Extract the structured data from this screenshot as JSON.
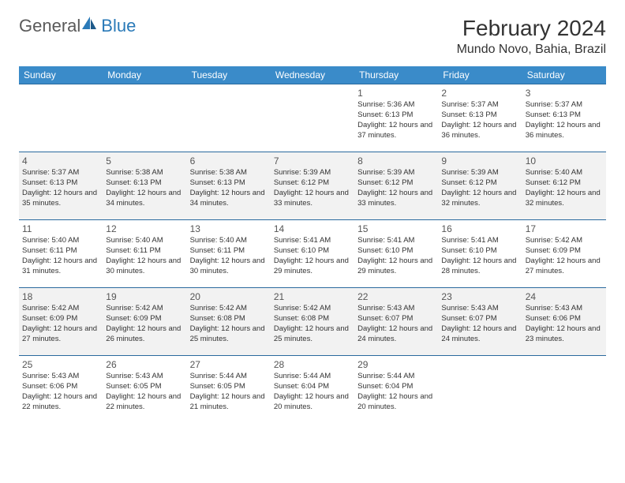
{
  "logo": {
    "general": "General",
    "blue": "Blue"
  },
  "title": "February 2024",
  "location": "Mundo Novo, Bahia, Brazil",
  "colors": {
    "header_bg": "#3a8bc9",
    "header_text": "#ffffff",
    "row_border": "#2a6a9e",
    "shade_row": "#f2f2f2",
    "logo_gray": "#5a5a5a",
    "logo_blue": "#2a7ab8"
  },
  "weekdays": [
    "Sunday",
    "Monday",
    "Tuesday",
    "Wednesday",
    "Thursday",
    "Friday",
    "Saturday"
  ],
  "layout": {
    "columns": 7,
    "rows": 5,
    "first_weekday_index": 4,
    "days_in_month": 29
  },
  "fonts": {
    "title_pt": 28,
    "location_pt": 16,
    "weekday_pt": 12,
    "daynum_pt": 12,
    "cell_pt": 9.5
  },
  "weeks": [
    [
      null,
      null,
      null,
      null,
      {
        "n": "1",
        "sunrise": "Sunrise: 5:36 AM",
        "sunset": "Sunset: 6:13 PM",
        "daylight": "Daylight: 12 hours and 37 minutes."
      },
      {
        "n": "2",
        "sunrise": "Sunrise: 5:37 AM",
        "sunset": "Sunset: 6:13 PM",
        "daylight": "Daylight: 12 hours and 36 minutes."
      },
      {
        "n": "3",
        "sunrise": "Sunrise: 5:37 AM",
        "sunset": "Sunset: 6:13 PM",
        "daylight": "Daylight: 12 hours and 36 minutes."
      }
    ],
    [
      {
        "n": "4",
        "sunrise": "Sunrise: 5:37 AM",
        "sunset": "Sunset: 6:13 PM",
        "daylight": "Daylight: 12 hours and 35 minutes."
      },
      {
        "n": "5",
        "sunrise": "Sunrise: 5:38 AM",
        "sunset": "Sunset: 6:13 PM",
        "daylight": "Daylight: 12 hours and 34 minutes."
      },
      {
        "n": "6",
        "sunrise": "Sunrise: 5:38 AM",
        "sunset": "Sunset: 6:13 PM",
        "daylight": "Daylight: 12 hours and 34 minutes."
      },
      {
        "n": "7",
        "sunrise": "Sunrise: 5:39 AM",
        "sunset": "Sunset: 6:12 PM",
        "daylight": "Daylight: 12 hours and 33 minutes."
      },
      {
        "n": "8",
        "sunrise": "Sunrise: 5:39 AM",
        "sunset": "Sunset: 6:12 PM",
        "daylight": "Daylight: 12 hours and 33 minutes."
      },
      {
        "n": "9",
        "sunrise": "Sunrise: 5:39 AM",
        "sunset": "Sunset: 6:12 PM",
        "daylight": "Daylight: 12 hours and 32 minutes."
      },
      {
        "n": "10",
        "sunrise": "Sunrise: 5:40 AM",
        "sunset": "Sunset: 6:12 PM",
        "daylight": "Daylight: 12 hours and 32 minutes."
      }
    ],
    [
      {
        "n": "11",
        "sunrise": "Sunrise: 5:40 AM",
        "sunset": "Sunset: 6:11 PM",
        "daylight": "Daylight: 12 hours and 31 minutes."
      },
      {
        "n": "12",
        "sunrise": "Sunrise: 5:40 AM",
        "sunset": "Sunset: 6:11 PM",
        "daylight": "Daylight: 12 hours and 30 minutes."
      },
      {
        "n": "13",
        "sunrise": "Sunrise: 5:40 AM",
        "sunset": "Sunset: 6:11 PM",
        "daylight": "Daylight: 12 hours and 30 minutes."
      },
      {
        "n": "14",
        "sunrise": "Sunrise: 5:41 AM",
        "sunset": "Sunset: 6:10 PM",
        "daylight": "Daylight: 12 hours and 29 minutes."
      },
      {
        "n": "15",
        "sunrise": "Sunrise: 5:41 AM",
        "sunset": "Sunset: 6:10 PM",
        "daylight": "Daylight: 12 hours and 29 minutes."
      },
      {
        "n": "16",
        "sunrise": "Sunrise: 5:41 AM",
        "sunset": "Sunset: 6:10 PM",
        "daylight": "Daylight: 12 hours and 28 minutes."
      },
      {
        "n": "17",
        "sunrise": "Sunrise: 5:42 AM",
        "sunset": "Sunset: 6:09 PM",
        "daylight": "Daylight: 12 hours and 27 minutes."
      }
    ],
    [
      {
        "n": "18",
        "sunrise": "Sunrise: 5:42 AM",
        "sunset": "Sunset: 6:09 PM",
        "daylight": "Daylight: 12 hours and 27 minutes."
      },
      {
        "n": "19",
        "sunrise": "Sunrise: 5:42 AM",
        "sunset": "Sunset: 6:09 PM",
        "daylight": "Daylight: 12 hours and 26 minutes."
      },
      {
        "n": "20",
        "sunrise": "Sunrise: 5:42 AM",
        "sunset": "Sunset: 6:08 PM",
        "daylight": "Daylight: 12 hours and 25 minutes."
      },
      {
        "n": "21",
        "sunrise": "Sunrise: 5:42 AM",
        "sunset": "Sunset: 6:08 PM",
        "daylight": "Daylight: 12 hours and 25 minutes."
      },
      {
        "n": "22",
        "sunrise": "Sunrise: 5:43 AM",
        "sunset": "Sunset: 6:07 PM",
        "daylight": "Daylight: 12 hours and 24 minutes."
      },
      {
        "n": "23",
        "sunrise": "Sunrise: 5:43 AM",
        "sunset": "Sunset: 6:07 PM",
        "daylight": "Daylight: 12 hours and 24 minutes."
      },
      {
        "n": "24",
        "sunrise": "Sunrise: 5:43 AM",
        "sunset": "Sunset: 6:06 PM",
        "daylight": "Daylight: 12 hours and 23 minutes."
      }
    ],
    [
      {
        "n": "25",
        "sunrise": "Sunrise: 5:43 AM",
        "sunset": "Sunset: 6:06 PM",
        "daylight": "Daylight: 12 hours and 22 minutes."
      },
      {
        "n": "26",
        "sunrise": "Sunrise: 5:43 AM",
        "sunset": "Sunset: 6:05 PM",
        "daylight": "Daylight: 12 hours and 22 minutes."
      },
      {
        "n": "27",
        "sunrise": "Sunrise: 5:44 AM",
        "sunset": "Sunset: 6:05 PM",
        "daylight": "Daylight: 12 hours and 21 minutes."
      },
      {
        "n": "28",
        "sunrise": "Sunrise: 5:44 AM",
        "sunset": "Sunset: 6:04 PM",
        "daylight": "Daylight: 12 hours and 20 minutes."
      },
      {
        "n": "29",
        "sunrise": "Sunrise: 5:44 AM",
        "sunset": "Sunset: 6:04 PM",
        "daylight": "Daylight: 12 hours and 20 minutes."
      },
      null,
      null
    ]
  ]
}
